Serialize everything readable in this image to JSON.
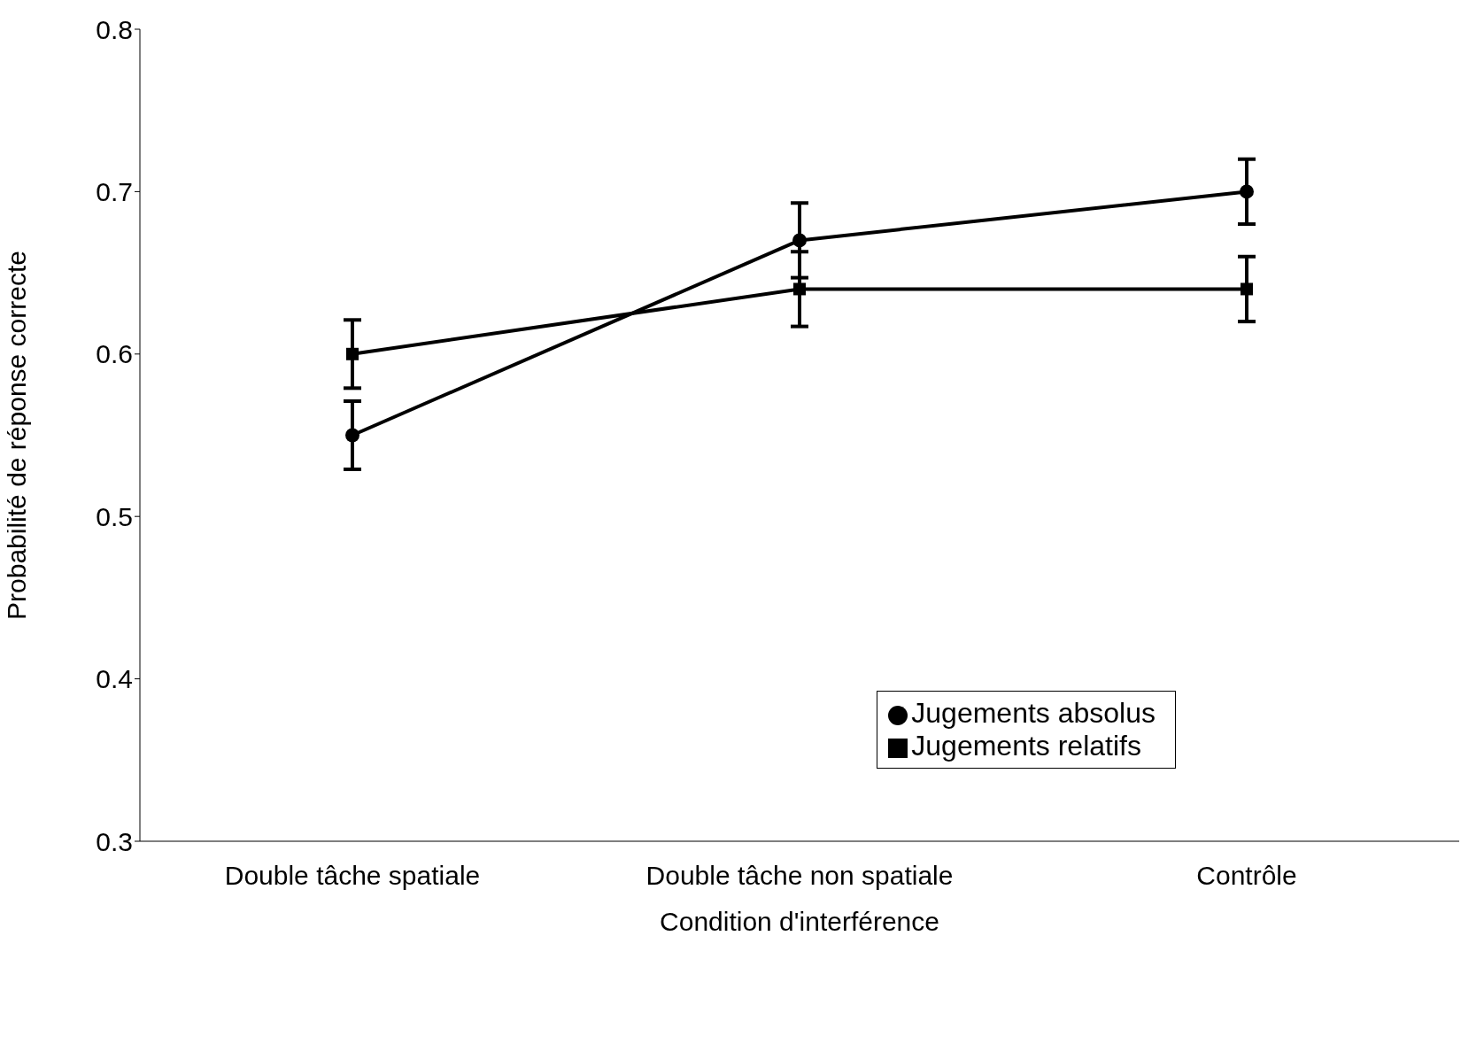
{
  "chart_data": {
    "type": "line",
    "xlabel": "Condition d'interférence",
    "ylabel": "Probabilité de réponse correcte",
    "categories": [
      "Double tâche spatiale",
      "Double tâche non spatiale",
      "Contrôle"
    ],
    "series": [
      {
        "name": "Jugements absolus",
        "color": "#000000",
        "marker": "circle",
        "values": [
          0.55,
          0.67,
          0.7
        ],
        "errors": [
          0.021,
          0.023,
          0.02
        ]
      },
      {
        "name": "Jugements relatifs",
        "color": "#000000",
        "marker": "square",
        "values": [
          0.6,
          0.64,
          0.64
        ],
        "errors": [
          0.021,
          0.023,
          0.02
        ]
      }
    ],
    "ylim": [
      0.3,
      0.8
    ],
    "yticks": [
      0.3,
      0.4,
      0.5,
      0.6,
      0.7,
      0.8
    ],
    "legend": "bottom right",
    "line_style": "solid"
  }
}
